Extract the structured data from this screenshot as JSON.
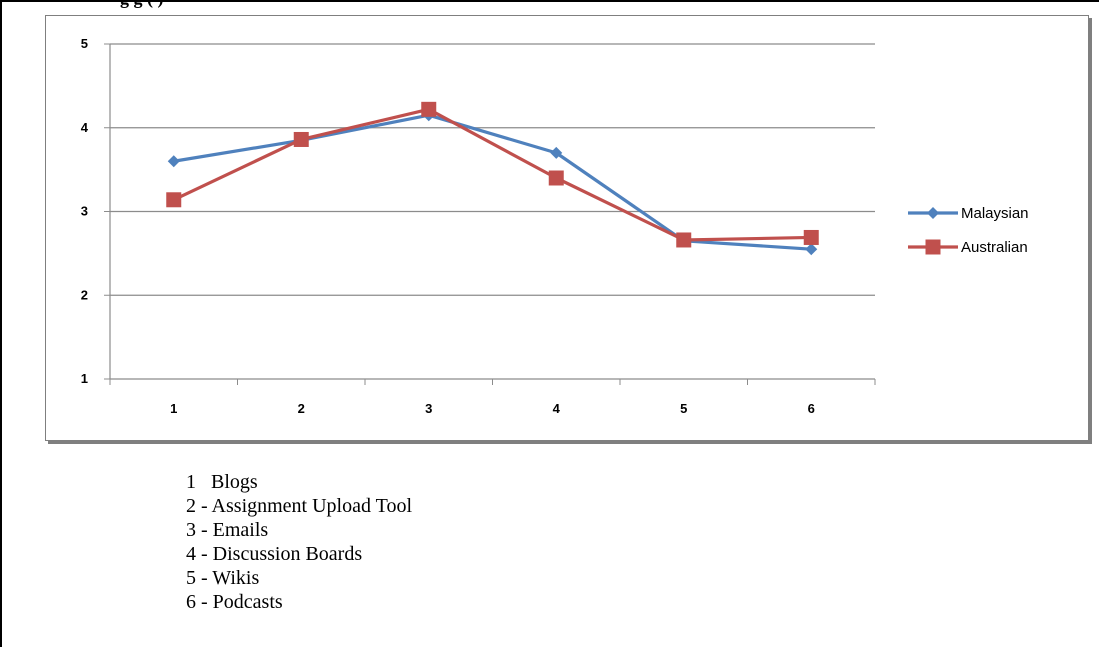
{
  "header": {
    "partial_caption": "g                                                                           g   (    )"
  },
  "chart_data": {
    "type": "line",
    "categories": [
      "1",
      "2",
      "3",
      "4",
      "5",
      "6"
    ],
    "yticks": [
      "1",
      "2",
      "3",
      "4",
      "5"
    ],
    "ylim": [
      1,
      5
    ],
    "grid": true,
    "legend_position": "right",
    "series": [
      {
        "name": "Malaysian",
        "values": [
          3.6,
          3.85,
          4.15,
          3.7,
          2.65,
          2.55
        ],
        "color": "#4f81bd",
        "marker": "diamond"
      },
      {
        "name": "Australian",
        "values": [
          3.14,
          3.86,
          4.22,
          3.4,
          2.66,
          2.69
        ],
        "color": "#c0504d",
        "marker": "square"
      }
    ]
  },
  "key_list": [
    "1   Blogs",
    "2 - Assignment Upload Tool",
    "3 - Emails",
    "4 - Discussion Boards",
    "5 - Wikis",
    "6 - Podcasts"
  ]
}
